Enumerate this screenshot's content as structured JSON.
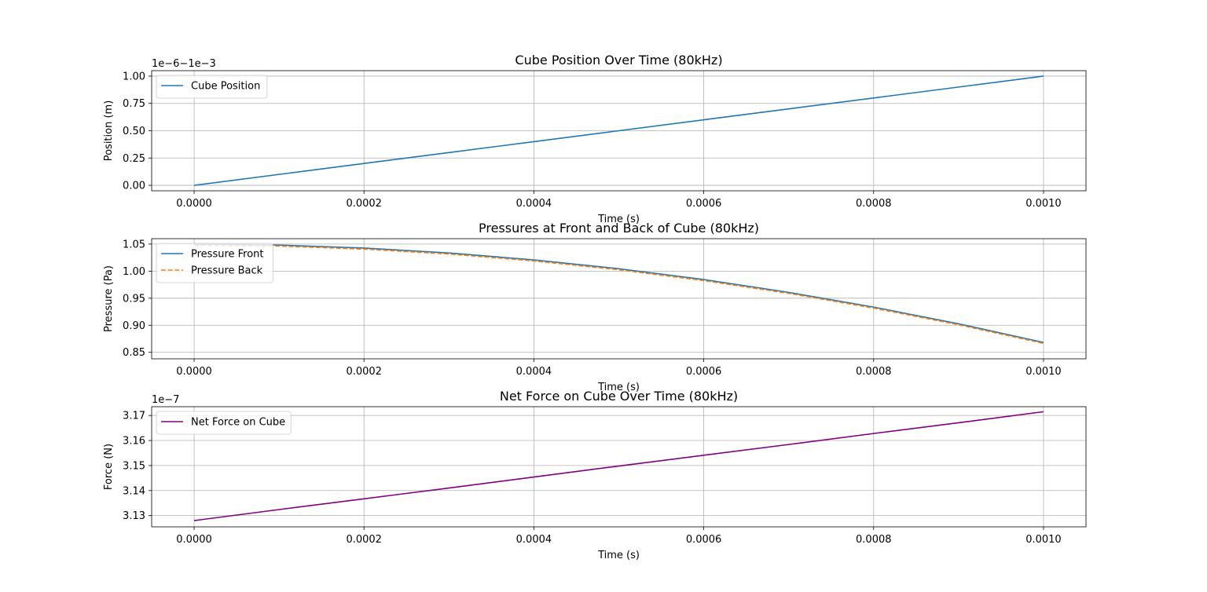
{
  "chart_data": [
    {
      "type": "line",
      "title": "Cube Position Over Time (80kHz)",
      "xlabel": "Time (s)",
      "ylabel": "Position (m)",
      "offset_text": "1e−6−1e−3",
      "xlim": [
        -5e-05,
        0.00105
      ],
      "ylim": [
        -0.05,
        1.05
      ],
      "xticks": [
        0,
        0.0002,
        0.0004,
        0.0006,
        0.0008,
        0.001
      ],
      "xtick_labels": [
        "0.0000",
        "0.0002",
        "0.0004",
        "0.0006",
        "0.0008",
        "0.0010"
      ],
      "yticks": [
        0,
        0.25,
        0.5,
        0.75,
        1.0
      ],
      "ytick_labels": [
        "0.00",
        "0.25",
        "0.50",
        "0.75",
        "1.00"
      ],
      "grid": true,
      "legend_position": "upper-left",
      "series": [
        {
          "name": "Cube Position",
          "color": "#1f77b4",
          "dash": "solid",
          "x": [
            0,
            0.0001,
            0.0002,
            0.0003,
            0.0004,
            0.0005,
            0.0006,
            0.0007,
            0.0008,
            0.0009,
            0.001
          ],
          "y": [
            0,
            0.1,
            0.2,
            0.3,
            0.4,
            0.5,
            0.6,
            0.7,
            0.8,
            0.9,
            1.0
          ]
        }
      ]
    },
    {
      "type": "line",
      "title": "Pressures at Front and Back of Cube (80kHz)",
      "xlabel": "Time (s)",
      "ylabel": "Pressure (Pa)",
      "offset_text": "",
      "xlim": [
        -5e-05,
        0.00105
      ],
      "ylim": [
        0.838,
        1.06
      ],
      "xticks": [
        0,
        0.0002,
        0.0004,
        0.0006,
        0.0008,
        0.001
      ],
      "xtick_labels": [
        "0.0000",
        "0.0002",
        "0.0004",
        "0.0006",
        "0.0008",
        "0.0010"
      ],
      "yticks": [
        0.85,
        0.9,
        0.95,
        1.0,
        1.05
      ],
      "ytick_labels": [
        "0.85",
        "0.90",
        "0.95",
        "1.00",
        "1.05"
      ],
      "grid": true,
      "legend_position": "upper-left",
      "series": [
        {
          "name": "Pressure Front",
          "color": "#1f77b4",
          "dash": "solid",
          "x": [
            0,
            0.0001,
            0.0002,
            0.0003,
            0.0004,
            0.0005,
            0.0006,
            0.0007,
            0.0008,
            0.0009,
            0.001
          ],
          "y": [
            1.05,
            1.0482,
            1.0427,
            1.0336,
            1.0208,
            1.0045,
            0.9845,
            0.9608,
            0.9336,
            0.9027,
            0.8683
          ]
        },
        {
          "name": "Pressure Back",
          "color": "#ff7f0e",
          "dash": "dashed",
          "x": [
            0,
            0.0001,
            0.0002,
            0.0003,
            0.0004,
            0.0005,
            0.0006,
            0.0007,
            0.0008,
            0.0009,
            0.001
          ],
          "y": [
            1.048,
            1.0463,
            1.0407,
            1.0316,
            1.0189,
            1.0025,
            0.9825,
            0.9589,
            0.9317,
            0.9009,
            0.8664
          ]
        }
      ]
    },
    {
      "type": "line",
      "title": "Net Force on Cube Over Time (80kHz)",
      "xlabel": "Time (s)",
      "ylabel": "Force (N)",
      "offset_text": "1e−7",
      "xlim": [
        -5e-05,
        0.00105
      ],
      "ylim": [
        3.1255,
        3.1735
      ],
      "xticks": [
        0,
        0.0002,
        0.0004,
        0.0006,
        0.0008,
        0.001
      ],
      "xtick_labels": [
        "0.0000",
        "0.0002",
        "0.0004",
        "0.0006",
        "0.0008",
        "0.0010"
      ],
      "yticks": [
        3.13,
        3.14,
        3.15,
        3.16,
        3.17
      ],
      "ytick_labels": [
        "3.13",
        "3.14",
        "3.15",
        "3.16",
        "3.17"
      ],
      "grid": true,
      "legend_position": "upper-left",
      "series": [
        {
          "name": "Net Force on Cube",
          "color": "#800080",
          "dash": "solid",
          "x": [
            0,
            0.0001,
            0.0002,
            0.0003,
            0.0004,
            0.0005,
            0.0006,
            0.0007,
            0.0008,
            0.0009,
            0.001
          ],
          "y": [
            3.128,
            3.1324,
            3.1367,
            3.141,
            3.1454,
            3.1498,
            3.1541,
            3.1584,
            3.1628,
            3.1671,
            3.1715
          ]
        }
      ]
    }
  ]
}
